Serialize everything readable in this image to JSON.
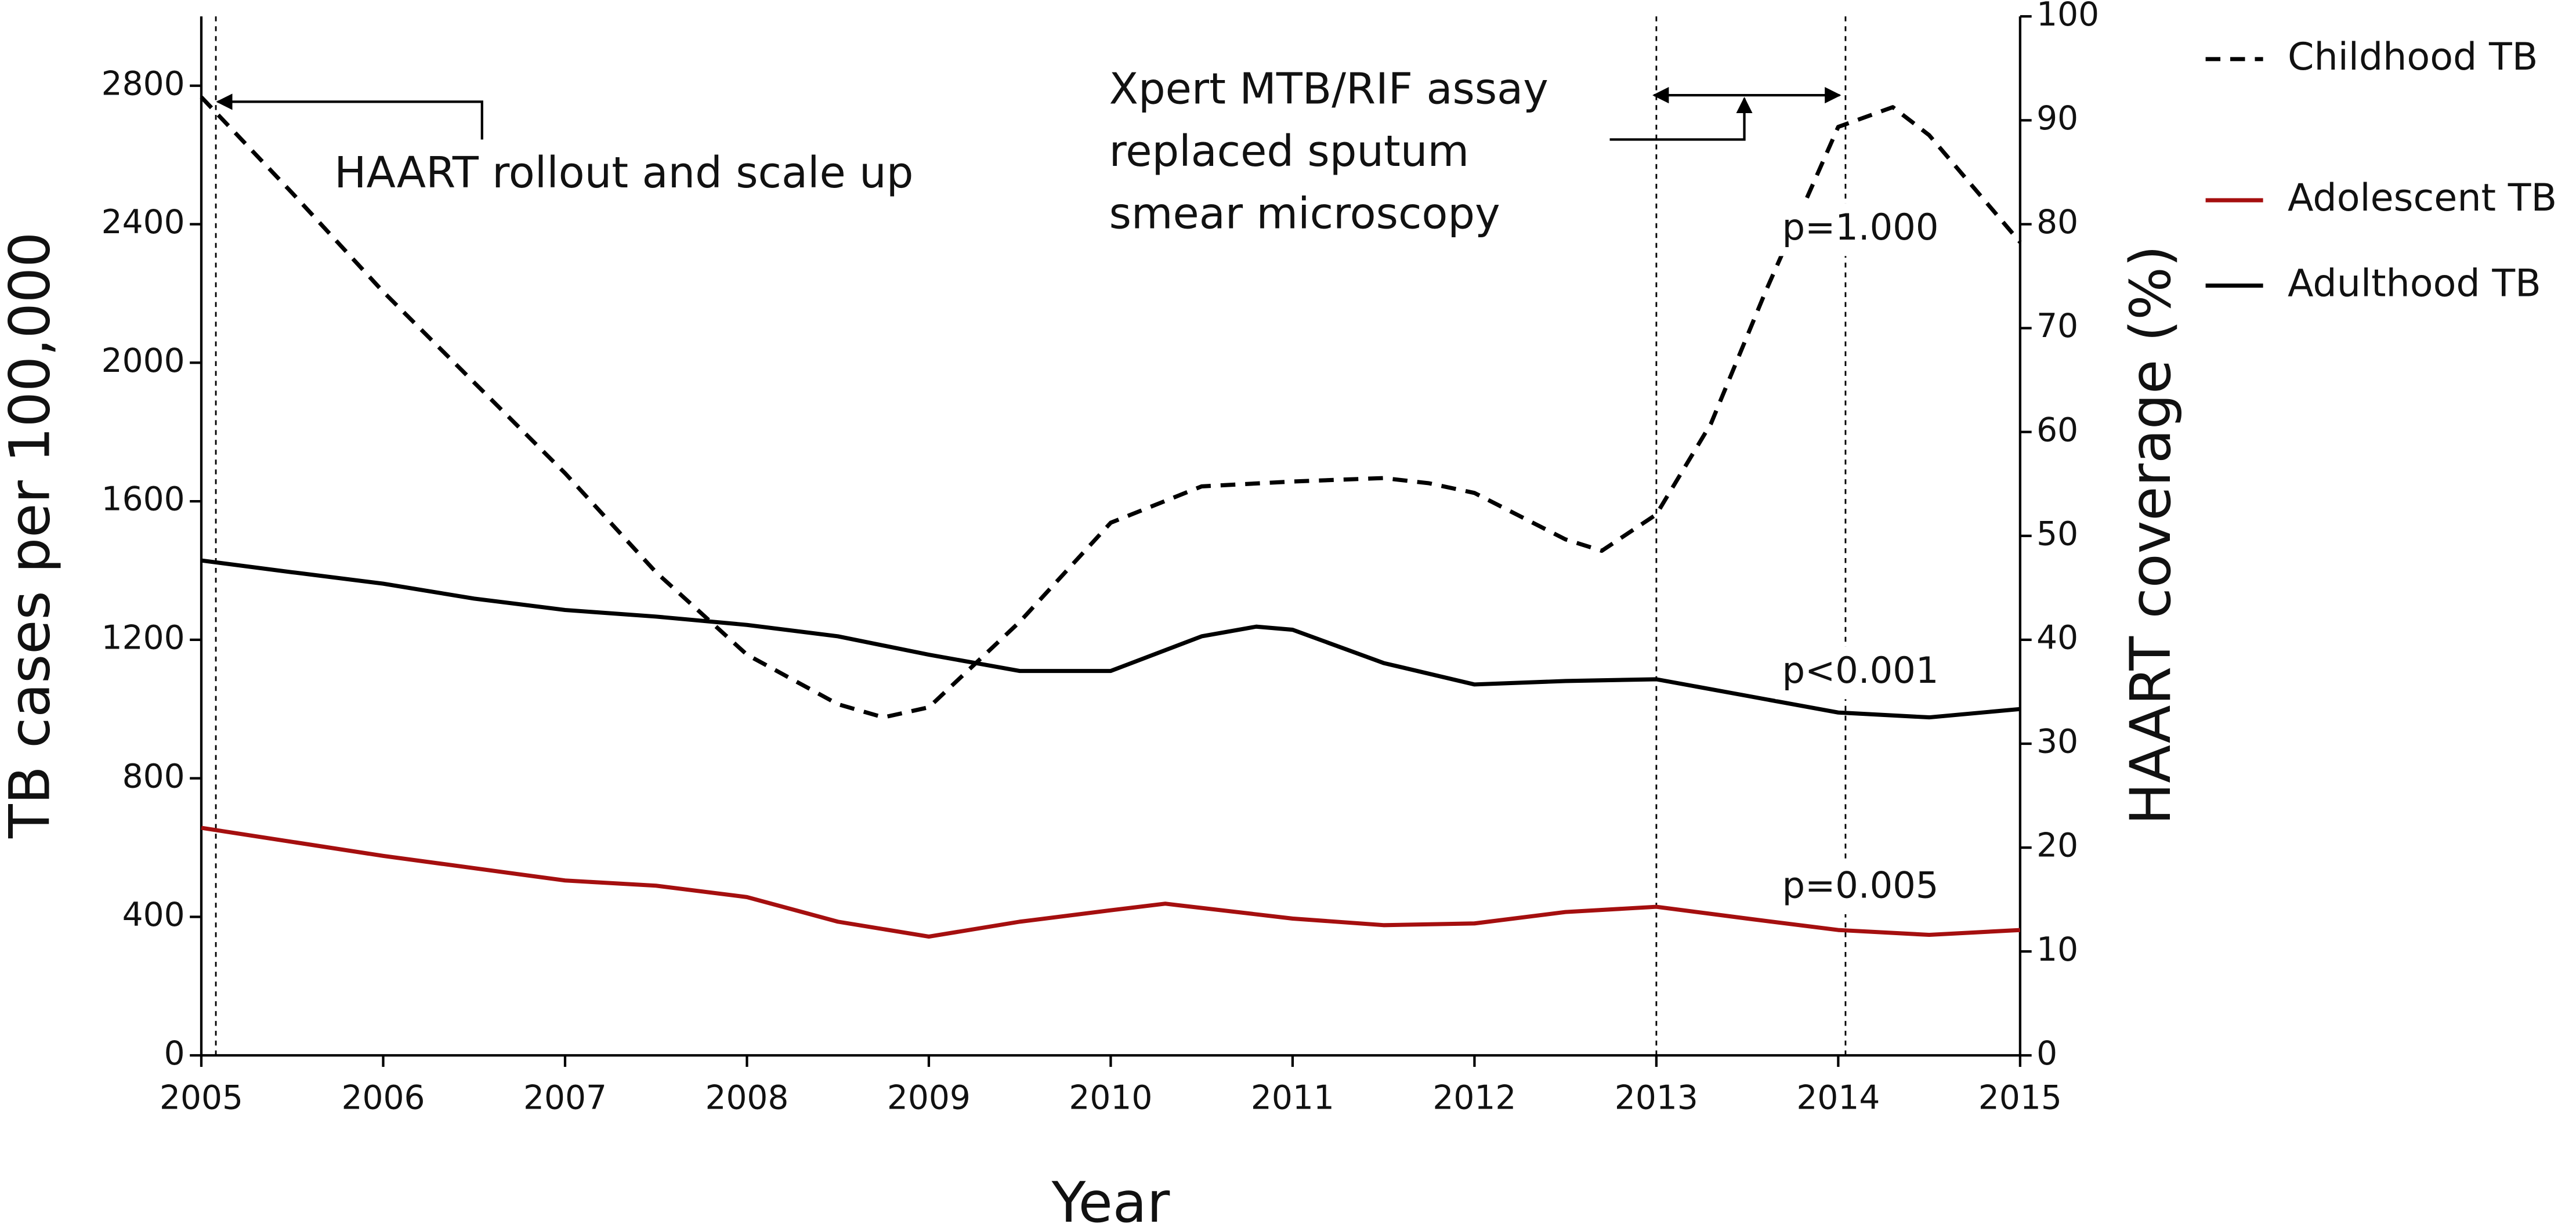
{
  "chart_data": {
    "type": "line",
    "x_label": "Year",
    "y_label": "TB cases per 100,000",
    "y2_label": "HAART coverage (%)",
    "xlim": [
      2005,
      2015
    ],
    "xticks": [
      2005,
      2006,
      2007,
      2008,
      2009,
      2010,
      2011,
      2012,
      2013,
      2014,
      2015
    ],
    "ylim": [
      0,
      3000
    ],
    "yticks": [
      0,
      400,
      800,
      1200,
      1600,
      2000,
      2400,
      2800
    ],
    "y2lim": [
      0,
      100
    ],
    "y2ticks": [
      0,
      10,
      20,
      30,
      40,
      50,
      60,
      70,
      80,
      90,
      100
    ],
    "series": [
      {
        "name": "Childhood TB",
        "color": "#000000",
        "dash": true,
        "x": [
          2005,
          2005.5,
          2006,
          2006.5,
          2007,
          2007.5,
          2008,
          2008.5,
          2008.75,
          2009,
          2009.5,
          2010,
          2010.5,
          2011,
          2011.5,
          2011.75,
          2012,
          2012.5,
          2012.7,
          2013,
          2013.3,
          2013.6,
          2014,
          2014.3,
          2014.5,
          2015
        ],
        "values": [
          2767,
          2490,
          2205,
          1943,
          1681,
          1395,
          1157,
          1014,
          976,
          1005,
          1252,
          1538,
          1643,
          1657,
          1667,
          1652,
          1624,
          1490,
          1457,
          1562,
          1824,
          2205,
          2681,
          2738,
          2657,
          2348
        ]
      },
      {
        "name": "Adolescent TB",
        "color": "#a50f0f",
        "dash": false,
        "x": [
          2005,
          2006,
          2007,
          2007.5,
          2008,
          2008.5,
          2009,
          2009.5,
          2010,
          2010.3,
          2011,
          2011.5,
          2012,
          2012.5,
          2013,
          2013.5,
          2014,
          2014.5,
          2015
        ],
        "values": [
          657,
          576,
          505,
          490,
          457,
          386,
          343,
          386,
          419,
          438,
          395,
          376,
          381,
          414,
          429,
          395,
          362,
          348,
          362
        ]
      },
      {
        "name": "Adulthood TB",
        "color": "#000000",
        "dash": false,
        "x": [
          2005,
          2005.5,
          2006,
          2006.5,
          2007,
          2007.5,
          2008,
          2008.5,
          2009,
          2009.5,
          2010,
          2010.5,
          2010.8,
          2011,
          2011.5,
          2012,
          2012.5,
          2013,
          2013.5,
          2014,
          2014.5,
          2015
        ],
        "values": [
          1429,
          1395,
          1362,
          1319,
          1286,
          1267,
          1243,
          1210,
          1157,
          1110,
          1110,
          1210,
          1238,
          1229,
          1133,
          1071,
          1081,
          1086,
          1038,
          990,
          976,
          1000
        ]
      }
    ],
    "p_values": [
      {
        "text": "p=1.000",
        "color": "#000000"
      },
      {
        "text": "p<0.001",
        "color": "#000000"
      },
      {
        "text": "p=0.005",
        "color": "#a50f0f"
      }
    ],
    "event_lines": [
      2005.08,
      2013,
      2014.04
    ],
    "annotations": {
      "haart": "HAART rollout and scale up",
      "xpert": [
        "Xpert MTB/RIF assay",
        "replaced sputum",
        "smear microscopy"
      ]
    }
  }
}
